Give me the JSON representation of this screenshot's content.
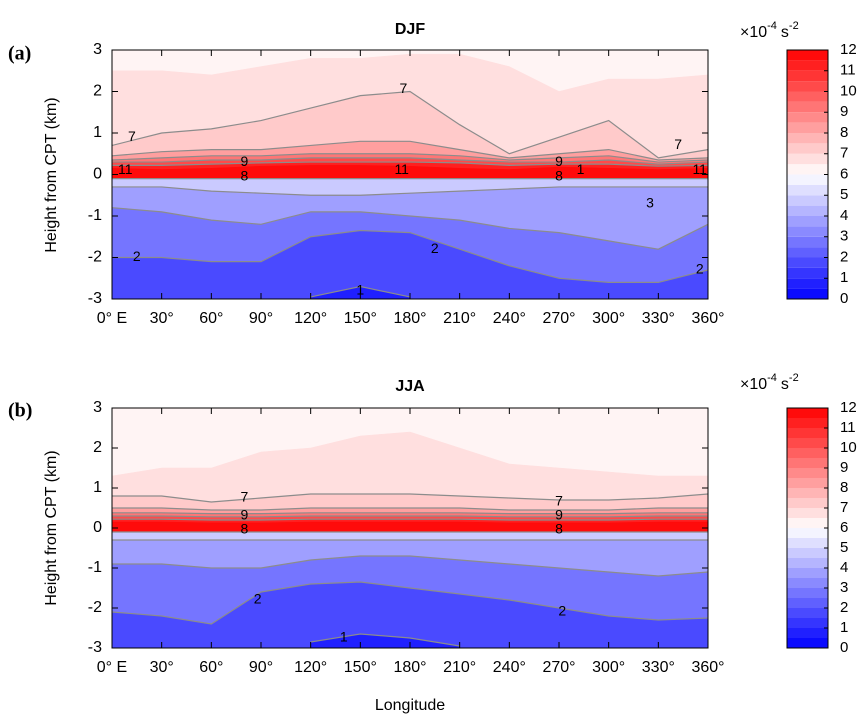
{
  "chart_data": [
    {
      "type": "contour",
      "title": "DJF",
      "panel_label": "(a)",
      "ylabel": "Height from CPT (km)",
      "xlim": [
        0,
        360
      ],
      "ylim": [
        -3,
        3
      ],
      "xticks": [
        {
          "value": 0,
          "label": "0° E"
        },
        {
          "value": 30,
          "label": "30°"
        },
        {
          "value": 60,
          "label": "60°"
        },
        {
          "value": 90,
          "label": "90°"
        },
        {
          "value": 120,
          "label": "120°"
        },
        {
          "value": 150,
          "label": "150°"
        },
        {
          "value": 180,
          "label": "180°"
        },
        {
          "value": 210,
          "label": "210°"
        },
        {
          "value": 240,
          "label": "240°"
        },
        {
          "value": 270,
          "label": "270°"
        },
        {
          "value": 300,
          "label": "300°"
        },
        {
          "value": 330,
          "label": "330°"
        },
        {
          "value": 360,
          "label": "360°"
        }
      ],
      "yticks": [
        -3,
        -2,
        -1,
        0,
        1,
        2,
        3
      ],
      "x": [
        0,
        30,
        60,
        90,
        120,
        150,
        180,
        210,
        240,
        270,
        300,
        330,
        360
      ],
      "contours": [
        {
          "level": 6.5,
          "y": [
            2.5,
            2.5,
            2.4,
            2.6,
            2.8,
            2.8,
            2.9,
            2.9,
            2.6,
            2.0,
            2.3,
            2.3,
            2.4
          ]
        },
        {
          "level": 7,
          "y": [
            0.7,
            1.0,
            1.1,
            1.3,
            1.6,
            1.9,
            2.0,
            1.2,
            0.5,
            0.9,
            1.3,
            0.4,
            0.6
          ]
        },
        {
          "level": 8,
          "y": [
            0.45,
            0.55,
            0.6,
            0.6,
            0.7,
            0.8,
            0.8,
            0.6,
            0.4,
            0.5,
            0.6,
            0.35,
            0.4
          ]
        },
        {
          "level": 9,
          "y": [
            0.35,
            0.4,
            0.45,
            0.45,
            0.5,
            0.5,
            0.5,
            0.45,
            0.35,
            0.4,
            0.45,
            0.3,
            0.35
          ]
        },
        {
          "level": 10,
          "y": [
            0.3,
            0.3,
            0.35,
            0.35,
            0.4,
            0.4,
            0.4,
            0.35,
            0.3,
            0.3,
            0.35,
            0.25,
            0.3
          ]
        },
        {
          "level": 11,
          "y": [
            0.22,
            0.22,
            0.25,
            0.28,
            0.3,
            0.3,
            0.3,
            0.28,
            0.22,
            0.25,
            0.25,
            0.2,
            0.22
          ]
        },
        {
          "level": 11.5,
          "y": [
            0.15,
            0.12,
            0.15,
            0.2,
            0.22,
            0.22,
            0.2,
            0.15,
            0.12,
            0.18,
            0.15,
            0.12,
            0.15
          ]
        },
        {
          "level": 5,
          "y": [
            -0.1,
            -0.1,
            -0.1,
            -0.1,
            -0.1,
            -0.1,
            -0.1,
            -0.1,
            -0.1,
            -0.1,
            -0.1,
            -0.1,
            -0.1
          ]
        },
        {
          "level": 4,
          "y": [
            -0.3,
            -0.3,
            -0.4,
            -0.45,
            -0.5,
            -0.5,
            -0.45,
            -0.4,
            -0.35,
            -0.3,
            -0.3,
            -0.3,
            -0.3
          ]
        },
        {
          "level": 3,
          "y": [
            -0.8,
            -0.9,
            -1.1,
            -1.2,
            -0.9,
            -0.9,
            -1.0,
            -1.1,
            -1.3,
            -1.4,
            -1.6,
            -1.8,
            -1.2
          ]
        },
        {
          "level": 2,
          "y": [
            -2.0,
            -2.0,
            -2.1,
            -2.1,
            -1.5,
            -1.35,
            -1.4,
            -1.8,
            -2.2,
            -2.5,
            -2.6,
            -2.6,
            -2.3
          ]
        },
        {
          "level": 1,
          "y": [
            null,
            null,
            null,
            null,
            -2.95,
            -2.7,
            -2.95,
            null,
            null,
            null,
            null,
            null,
            null
          ]
        }
      ],
      "annotations": [
        {
          "text": 7,
          "x": 12,
          "y": 0.9
        },
        {
          "text": 7,
          "x": 176,
          "y": 2.05
        },
        {
          "text": 7,
          "x": 342,
          "y": 0.7
        },
        {
          "text": 11,
          "x": 8,
          "y": 0.1
        },
        {
          "text": 11,
          "x": 175,
          "y": 0.1
        },
        {
          "text": 11,
          "x": 355,
          "y": 0.1
        },
        {
          "text": 1,
          "x": 283,
          "y": 0.1
        },
        {
          "text": 9,
          "x": 80,
          "y": 0.3
        },
        {
          "text": 8,
          "x": 80,
          "y": -0.05
        },
        {
          "text": 9,
          "x": 270,
          "y": 0.3
        },
        {
          "text": 8,
          "x": 270,
          "y": -0.05
        },
        {
          "text": 3,
          "x": 325,
          "y": -0.7
        },
        {
          "text": 2,
          "x": 195,
          "y": -1.8
        },
        {
          "text": 2,
          "x": 15,
          "y": -2.0
        },
        {
          "text": 2,
          "x": 355,
          "y": -2.3
        },
        {
          "text": 1,
          "x": 150,
          "y": -2.8
        }
      ],
      "colorbar": {
        "label": {
          "base": "×10",
          "exponent": "-4",
          "unit": "s",
          "unit_exponent": "-2"
        },
        "clim": [
          0,
          12
        ],
        "ticks": [
          0,
          1,
          2,
          3,
          4,
          5,
          6,
          7,
          8,
          9,
          10,
          11,
          12
        ],
        "step": 0.5,
        "cmap": [
          "#0000ff",
          "#ffffff",
          "#ff0000"
        ]
      }
    },
    {
      "type": "contour",
      "title": "JJA",
      "panel_label": "(b)",
      "ylabel": "Height from CPT (km)",
      "xlabel": "Longitude",
      "xlim": [
        0,
        360
      ],
      "ylim": [
        -3,
        3
      ],
      "xticks": [
        {
          "value": 0,
          "label": "0° E"
        },
        {
          "value": 30,
          "label": "30°"
        },
        {
          "value": 60,
          "label": "60°"
        },
        {
          "value": 90,
          "label": "90°"
        },
        {
          "value": 120,
          "label": "120°"
        },
        {
          "value": 150,
          "label": "150°"
        },
        {
          "value": 180,
          "label": "180°"
        },
        {
          "value": 210,
          "label": "210°"
        },
        {
          "value": 240,
          "label": "240°"
        },
        {
          "value": 270,
          "label": "270°"
        },
        {
          "value": 300,
          "label": "300°"
        },
        {
          "value": 330,
          "label": "330°"
        },
        {
          "value": 360,
          "label": "360°"
        }
      ],
      "yticks": [
        -3,
        -2,
        -1,
        0,
        1,
        2,
        3
      ],
      "x": [
        0,
        30,
        60,
        90,
        120,
        150,
        180,
        210,
        240,
        270,
        300,
        330,
        360
      ],
      "contours": [
        {
          "level": 6.5,
          "y": [
            1.3,
            1.5,
            1.5,
            1.9,
            2.0,
            2.3,
            2.4,
            2.0,
            1.6,
            1.5,
            1.4,
            1.3,
            1.3
          ]
        },
        {
          "level": 7,
          "y": [
            0.8,
            0.8,
            0.65,
            0.75,
            0.85,
            0.85,
            0.85,
            0.8,
            0.75,
            0.7,
            0.7,
            0.75,
            0.85
          ]
        },
        {
          "level": 8,
          "y": [
            0.5,
            0.5,
            0.45,
            0.45,
            0.5,
            0.5,
            0.5,
            0.5,
            0.45,
            0.45,
            0.45,
            0.5,
            0.5
          ]
        },
        {
          "level": 9,
          "y": [
            0.38,
            0.38,
            0.36,
            0.36,
            0.38,
            0.38,
            0.38,
            0.38,
            0.36,
            0.36,
            0.36,
            0.38,
            0.38
          ]
        },
        {
          "level": 10,
          "y": [
            0.3,
            0.3,
            0.28,
            0.28,
            0.3,
            0.3,
            0.3,
            0.3,
            0.28,
            0.28,
            0.28,
            0.3,
            0.3
          ]
        },
        {
          "level": 11,
          "y": [
            0.22,
            0.22,
            0.2,
            0.2,
            0.22,
            0.22,
            0.22,
            0.22,
            0.2,
            0.2,
            0.2,
            0.22,
            0.22
          ]
        },
        {
          "level": 11.5,
          "y": [
            0.15,
            0.15,
            0.13,
            0.13,
            0.15,
            0.15,
            0.15,
            0.15,
            0.13,
            0.13,
            0.13,
            0.15,
            0.15
          ]
        },
        {
          "level": 5,
          "y": [
            -0.1,
            -0.1,
            -0.1,
            -0.1,
            -0.1,
            -0.1,
            -0.1,
            -0.1,
            -0.1,
            -0.1,
            -0.1,
            -0.1,
            -0.1
          ]
        },
        {
          "level": 4,
          "y": [
            -0.3,
            -0.3,
            -0.3,
            -0.3,
            -0.3,
            -0.3,
            -0.3,
            -0.3,
            -0.3,
            -0.3,
            -0.3,
            -0.3,
            -0.3
          ]
        },
        {
          "level": 3,
          "y": [
            -0.9,
            -0.9,
            -1.0,
            -1.0,
            -0.8,
            -0.7,
            -0.7,
            -0.8,
            -0.9,
            -1.0,
            -1.1,
            -1.2,
            -1.1
          ]
        },
        {
          "level": 2,
          "y": [
            -2.1,
            -2.2,
            -2.4,
            -1.6,
            -1.4,
            -1.35,
            -1.5,
            -1.65,
            -1.8,
            -2.0,
            -2.2,
            -2.3,
            -2.25
          ]
        },
        {
          "level": 1,
          "y": [
            null,
            null,
            null,
            null,
            -2.85,
            -2.65,
            -2.75,
            -2.95,
            null,
            null,
            null,
            null,
            null
          ]
        }
      ],
      "annotations": [
        {
          "text": 7,
          "x": 80,
          "y": 0.75
        },
        {
          "text": 7,
          "x": 270,
          "y": 0.65
        },
        {
          "text": 9,
          "x": 80,
          "y": 0.3
        },
        {
          "text": 8,
          "x": 80,
          "y": -0.05
        },
        {
          "text": 9,
          "x": 270,
          "y": 0.3
        },
        {
          "text": 8,
          "x": 270,
          "y": -0.05
        },
        {
          "text": 2,
          "x": 88,
          "y": -1.8
        },
        {
          "text": 2,
          "x": 272,
          "y": -2.1
        },
        {
          "text": 1,
          "x": 140,
          "y": -2.75
        }
      ],
      "colorbar": {
        "label": {
          "base": "×10",
          "exponent": "-4",
          "unit": "s",
          "unit_exponent": "-2"
        },
        "clim": [
          0,
          12
        ],
        "ticks": [
          0,
          1,
          2,
          3,
          4,
          5,
          6,
          7,
          8,
          9,
          10,
          11,
          12
        ],
        "step": 0.5,
        "cmap": [
          "#0000ff",
          "#ffffff",
          "#ff0000"
        ]
      }
    }
  ]
}
